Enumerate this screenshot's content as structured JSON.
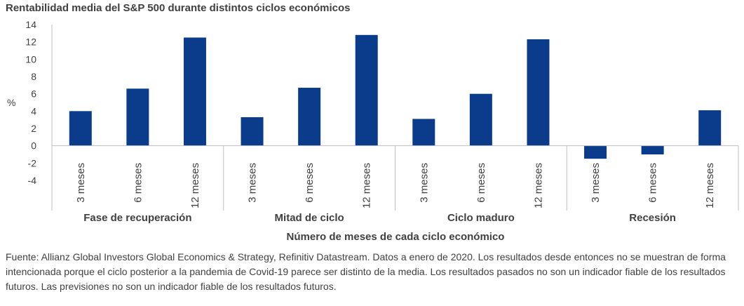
{
  "title": "Rentabilidad media del S&P 500 durante distintos ciclos económicos",
  "source_note": "Fuente: Allianz Global Investors Global Economics & Strategy, Refinitiv Datastream. Datos a enero de 2020. Los resultados desde entonces no se muestran de forma intencionada porque el ciclo posterior a la pandemia de Covid-19 parece ser distinto de la media. Los resultados pasados no son un indicador fiable de los resultados futuros. Las previsiones no son un indicador fiable de los resultados futuros.",
  "colors": {
    "bar": "#0b3c8c",
    "axis": "#bfbfbf",
    "text": "#404040"
  },
  "chart_data": {
    "type": "bar",
    "title": "Rentabilidad media del S&P 500 durante distintos ciclos económicos",
    "xlabel": "Número de meses de cada ciclo económico",
    "ylabel": "%",
    "ylim": [
      -4,
      14
    ],
    "yticks": [
      14,
      12,
      10,
      8,
      6,
      4,
      2,
      0,
      -2,
      -4
    ],
    "grid": false,
    "legend": "none",
    "groups": [
      {
        "name": "Fase de recuperación",
        "categories": [
          "3 meses",
          "6 meses",
          "12 meses"
        ],
        "values": [
          4.0,
          6.6,
          12.5
        ]
      },
      {
        "name": "Mitad de ciclo",
        "categories": [
          "3 meses",
          "6 meses",
          "12 meses"
        ],
        "values": [
          3.3,
          6.7,
          12.8
        ]
      },
      {
        "name": "Ciclo maduro",
        "categories": [
          "3 meses",
          "6 meses",
          "12 meses"
        ],
        "values": [
          3.1,
          6.0,
          12.3
        ]
      },
      {
        "name": "Recesión",
        "categories": [
          "3 meses",
          "6 meses",
          "12 meses"
        ],
        "values": [
          -1.5,
          -1.0,
          4.1
        ]
      }
    ]
  }
}
